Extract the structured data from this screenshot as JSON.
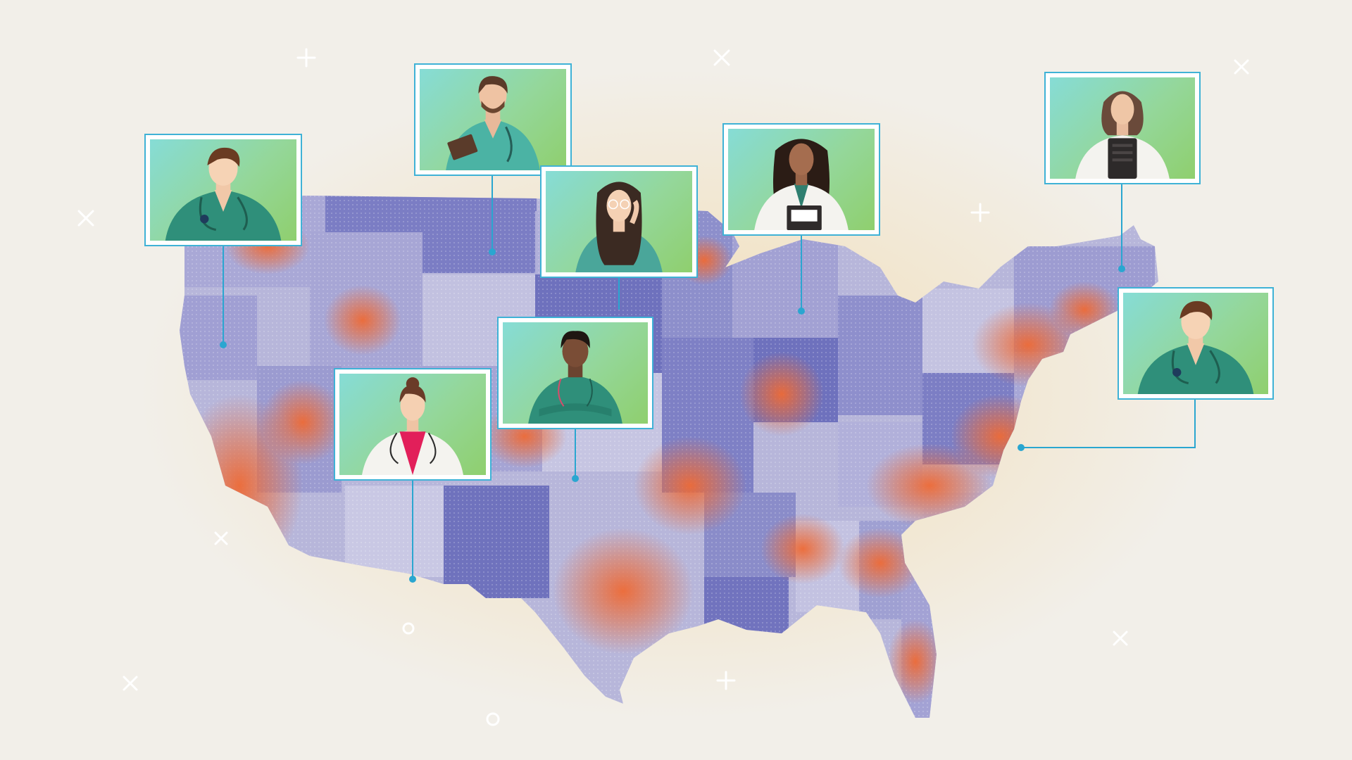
{
  "colors": {
    "background": "#f2efe9",
    "state_light": "#b7b6da",
    "state_mid": "#9b9bd0",
    "state_dark": "#6e71bd",
    "hotspot": "#ee6a35",
    "connector": "#2aa6d0",
    "card_border": "#3fb2d6",
    "scrub_green": "#2f8f7a",
    "coat_white": "#f4f3ef"
  },
  "icons": {
    "sparkle": "plus-sparkle-icon",
    "ring": "circle-ring-icon",
    "pin": "location-pin-icon"
  },
  "providers": [
    {
      "id": "p1",
      "icon": "doctor-stethoscope-icon",
      "outfit": "green-scrubs"
    },
    {
      "id": "p2",
      "icon": "nurse-clipboard-icon",
      "outfit": "teal-scrubs"
    },
    {
      "id": "p3",
      "icon": "doctor-glasses-icon",
      "outfit": "teal-top"
    },
    {
      "id": "p4",
      "icon": "doctor-lab-coat-icon",
      "outfit": "white-coat"
    },
    {
      "id": "p5",
      "icon": "doctor-tablet-icon",
      "outfit": "white-coat"
    },
    {
      "id": "p6",
      "icon": "nurse-arms-crossed-icon",
      "outfit": "green-scrubs"
    },
    {
      "id": "p7",
      "icon": "doctor-pink-top-icon",
      "outfit": "white-coat"
    },
    {
      "id": "p8",
      "icon": "doctor-stethoscope-icon",
      "outfit": "green-scrubs"
    }
  ]
}
